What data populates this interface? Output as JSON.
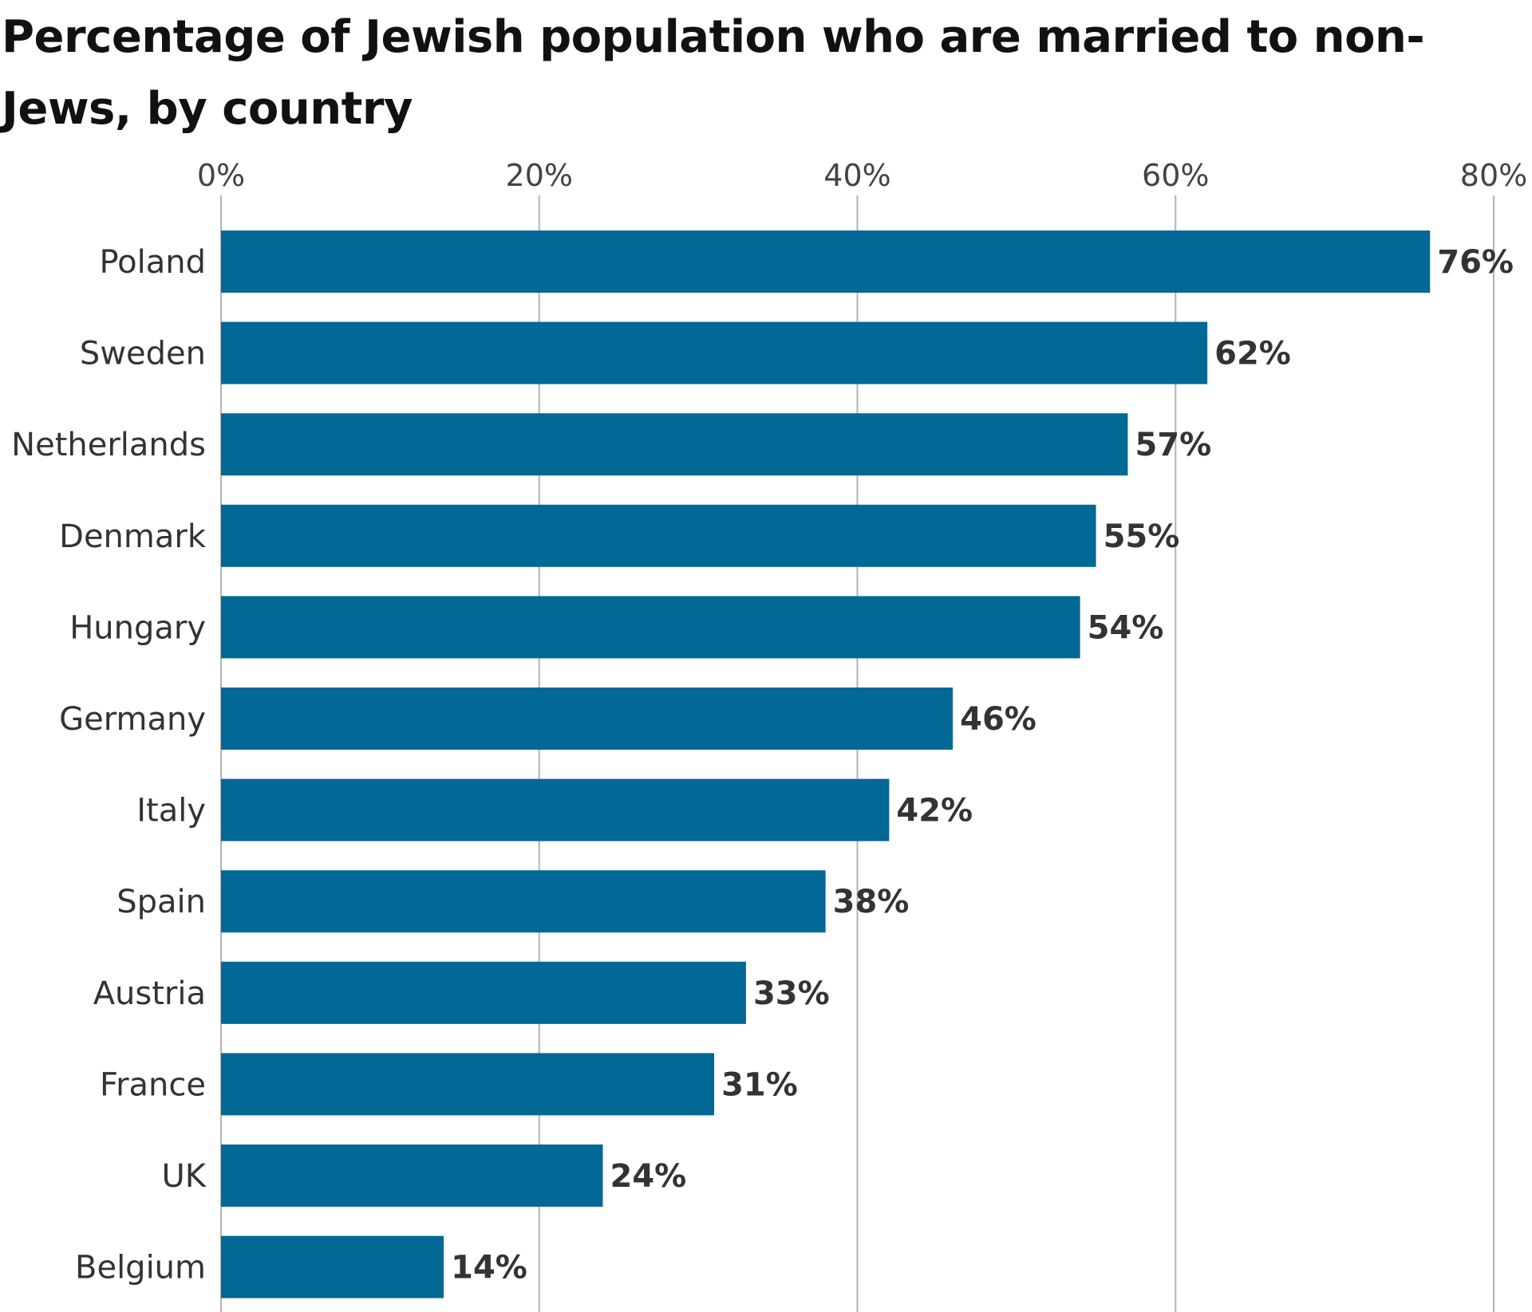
{
  "chart_data": {
    "type": "bar",
    "orientation": "horizontal",
    "title": "Percentage of Jewish population who are married to non-Jews, by country",
    "categories": [
      "Poland",
      "Sweden",
      "Netherlands",
      "Denmark",
      "Hungary",
      "Germany",
      "Italy",
      "Spain",
      "Austria",
      "France",
      "UK",
      "Belgium"
    ],
    "values": [
      76,
      62,
      57,
      55,
      54,
      46,
      42,
      38,
      33,
      31,
      24,
      14
    ],
    "value_labels": [
      "76%",
      "62%",
      "57%",
      "55%",
      "54%",
      "46%",
      "42%",
      "38%",
      "33%",
      "31%",
      "24%",
      "14%"
    ],
    "xlim": [
      0,
      80
    ],
    "x_ticks": [
      0,
      20,
      40,
      60,
      80
    ],
    "x_tick_labels": [
      "0%",
      "20%",
      "40%",
      "60%",
      "80%"
    ],
    "xlabel": "",
    "ylabel": "",
    "x_axis_position": "top",
    "grid": true,
    "legend": "none",
    "bar_color": "#026895",
    "grid_color": "#b3b3b3"
  }
}
